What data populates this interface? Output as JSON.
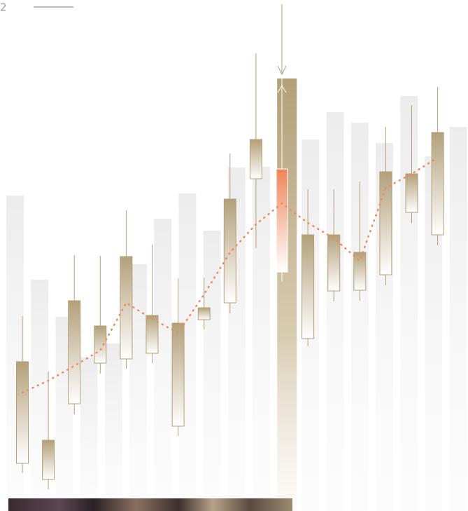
{
  "header": {
    "index": "2"
  },
  "chart_data": {
    "type": "candlestick",
    "ylim": [
      0,
      720
    ],
    "open": [
      59,
      36,
      144,
      202,
      208,
      216,
      112,
      264,
      288,
      465,
      332,
      237,
      305,
      306,
      328,
      417,
      385
    ],
    "close": [
      204,
      92,
      291,
      255,
      354,
      270,
      259,
      281,
      436,
      521,
      479,
      385,
      385,
      360,
      475,
      472,
      531
    ],
    "high": [
      269,
      190,
      356,
      355,
      420,
      371,
      323,
      324,
      501,
      644,
      608,
      450,
      450,
      461,
      539,
      570,
      596
    ],
    "low": [
      45,
      22,
      129,
      187,
      194,
      202,
      98,
      250,
      273,
      366,
      318,
      226,
      290,
      291,
      313,
      402,
      370
    ],
    "trend": [
      160,
      177,
      198,
      220,
      288,
      265,
      245,
      300,
      360,
      400,
      430,
      402,
      380,
      348,
      452,
      472,
      495
    ],
    "columns": [
      441,
      321,
      268,
      210,
      230,
      343,
      408,
      444,
      391,
      481,
      482,
      608,
      521,
      560,
      545,
      516,
      583,
      497,
      539
    ],
    "highlight_index": 10,
    "color": "#b3a07a",
    "highlight_color": "#ee8659",
    "trend_color": "#f08a5d"
  }
}
